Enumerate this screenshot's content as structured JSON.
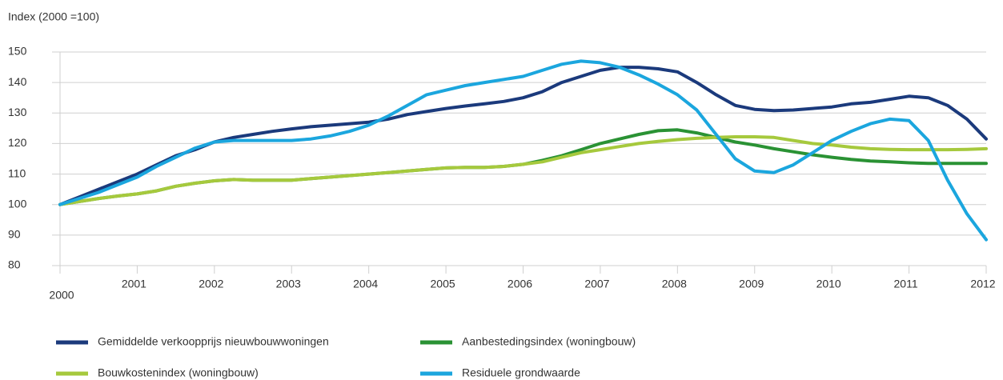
{
  "chart_data": {
    "type": "line",
    "y_label": "Index (2000 =100)",
    "x": [
      2000,
      2000.25,
      2000.5,
      2000.75,
      2001,
      2001.25,
      2001.5,
      2001.75,
      2002,
      2002.25,
      2002.5,
      2002.75,
      2003,
      2003.25,
      2003.5,
      2003.75,
      2004,
      2004.25,
      2004.5,
      2004.75,
      2005,
      2005.25,
      2005.5,
      2005.75,
      2006,
      2006.25,
      2006.5,
      2006.75,
      2007,
      2007.25,
      2007.5,
      2007.75,
      2008,
      2008.25,
      2008.5,
      2008.75,
      2009,
      2009.25,
      2009.5,
      2009.75,
      2010,
      2010.25,
      2010.5,
      2010.75,
      2011,
      2011.25,
      2011.5,
      2011.75,
      2012
    ],
    "xlim": [
      2000,
      2012
    ],
    "xticks": [
      2000,
      2001,
      2002,
      2003,
      2004,
      2005,
      2006,
      2007,
      2008,
      2009,
      2010,
      2011,
      2012
    ],
    "ylim": [
      80,
      150
    ],
    "yticks": [
      80,
      90,
      100,
      110,
      120,
      130,
      140,
      150
    ],
    "grid": true,
    "legend_position": "bottom",
    "series": [
      {
        "name": "Gemiddelde verkoopprijs nieuwbouwwoningen",
        "color": "#1b3a7c",
        "values": [
          100,
          102.5,
          105,
          107.5,
          110,
          113,
          116,
          118,
          120.5,
          122,
          123,
          124,
          124.8,
          125.5,
          126,
          126.5,
          127,
          128,
          129.5,
          130.5,
          131.5,
          132.3,
          133,
          133.8,
          135,
          137,
          140,
          142,
          144,
          145,
          145,
          144.5,
          143.5,
          140,
          136,
          132.5,
          131.2,
          130.8,
          131,
          131.5,
          132,
          133,
          133.5,
          134.5,
          135.5,
          135,
          132.5,
          128,
          121.5
        ]
      },
      {
        "name": "Aanbestedingsindex (woningbouw)",
        "color": "#2a9234",
        "values": [
          100,
          101,
          102,
          102.8,
          103.5,
          104.5,
          106,
          107,
          107.8,
          108.2,
          108,
          108,
          108,
          108.5,
          109,
          109.5,
          110,
          110.5,
          111,
          111.5,
          112,
          112.2,
          112.2,
          112.5,
          113.2,
          114.5,
          116,
          118,
          120,
          121.5,
          123,
          124.2,
          124.5,
          123.5,
          122,
          120.5,
          119.5,
          118.3,
          117.3,
          116.3,
          115.5,
          114.8,
          114.3,
          114,
          113.7,
          113.5,
          113.5,
          113.5,
          113.5
        ]
      },
      {
        "name": "Bouwkostenindex (woningbouw)",
        "color": "#a6c93d",
        "values": [
          100,
          101,
          102,
          102.8,
          103.5,
          104.5,
          106,
          107,
          107.8,
          108.2,
          108,
          108,
          108,
          108.5,
          109,
          109.5,
          110,
          110.5,
          111,
          111.5,
          112,
          112.2,
          112.2,
          112.5,
          113.2,
          114,
          115.5,
          117,
          118,
          119,
          120,
          120.7,
          121.3,
          121.7,
          122,
          122.2,
          122.2,
          122,
          121,
          120,
          119.5,
          118.8,
          118.3,
          118.1,
          118,
          118,
          118,
          118.1,
          118.3
        ]
      },
      {
        "name": "Residuele grondwaarde",
        "color": "#1ba6de",
        "values": [
          100,
          102,
          104,
          106.5,
          109,
          112.5,
          115.5,
          118.5,
          120.5,
          121,
          121,
          121,
          121,
          121.5,
          122.5,
          124,
          126,
          129,
          132.5,
          136,
          137.5,
          139,
          140,
          141,
          142,
          144,
          146,
          147,
          146.5,
          145,
          142.5,
          139.5,
          136,
          131,
          123,
          115,
          111,
          110.5,
          113,
          117,
          121,
          124,
          126.5,
          128,
          127.5,
          121,
          108,
          97,
          88.5
        ]
      }
    ]
  }
}
